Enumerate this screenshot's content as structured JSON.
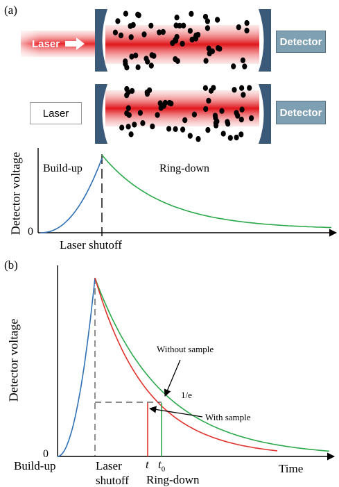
{
  "panel_a": {
    "label": "(a)",
    "top_setup": {
      "laser_label": "Laser",
      "detector_label": "Detector"
    },
    "bottom_setup": {
      "laser_label": "Laser",
      "detector_label": "Detector"
    },
    "plot": {
      "ylabel": "Detector voltage",
      "zero_label": "0",
      "phase_left": "Build-up",
      "phase_right": "Ring-down",
      "event_label": "Laser shutoff"
    }
  },
  "panel_b": {
    "label": "(b)",
    "ylabel": "Detector voltage",
    "zero_label": "0",
    "xlabel": "Time",
    "phase_left": "Build-up",
    "event_label_line1": "Laser",
    "event_label_line2": "shutoff",
    "phase_right": "Ring-down",
    "annotation_without": "Without sample",
    "annotation_with": "With sample",
    "annotation_threshold": "1/e",
    "tick_t": "t",
    "tick_t0_main": "t",
    "tick_t0_sub": "0"
  },
  "colors": {
    "buildup": "#2e6fb5",
    "ringdown_without": "#2aa84a",
    "ringdown_with": "#e0312b",
    "mirror": "#3b5a7a",
    "detector": "#7fa0b2",
    "laser_beam": "#e8262a",
    "particle": "#000000"
  }
}
